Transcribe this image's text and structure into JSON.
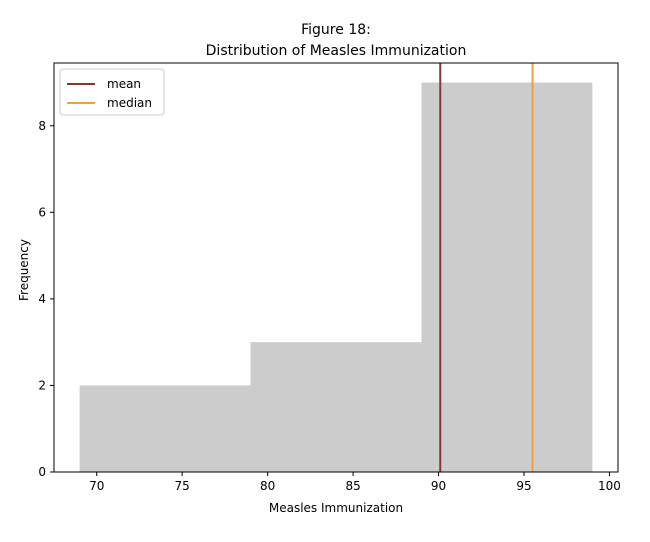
{
  "chart_data": {
    "type": "histogram",
    "title_line1": "Figure 18:",
    "title_line2": "Distribution of Measles Immunization",
    "xlabel": "Measles Immunization",
    "ylabel": "Frequency",
    "xlim": [
      67.5,
      100.5
    ],
    "ylim": [
      0,
      9.45
    ],
    "x_ticks": [
      70,
      75,
      80,
      85,
      90,
      95,
      100
    ],
    "y_ticks": [
      0,
      2,
      4,
      6,
      8
    ],
    "bins": [
      {
        "start": 69,
        "end": 79,
        "count": 2
      },
      {
        "start": 79,
        "end": 89,
        "count": 3
      },
      {
        "start": 89,
        "end": 99,
        "count": 9
      }
    ],
    "bar_color": "#cccccc",
    "reference_lines": [
      {
        "name": "mean",
        "x": 90.1,
        "color": "#7f3a35"
      },
      {
        "name": "median",
        "x": 95.5,
        "color": "#f0a040"
      }
    ],
    "legend": {
      "placement": "top-left",
      "entries": [
        "mean",
        "median"
      ]
    }
  }
}
